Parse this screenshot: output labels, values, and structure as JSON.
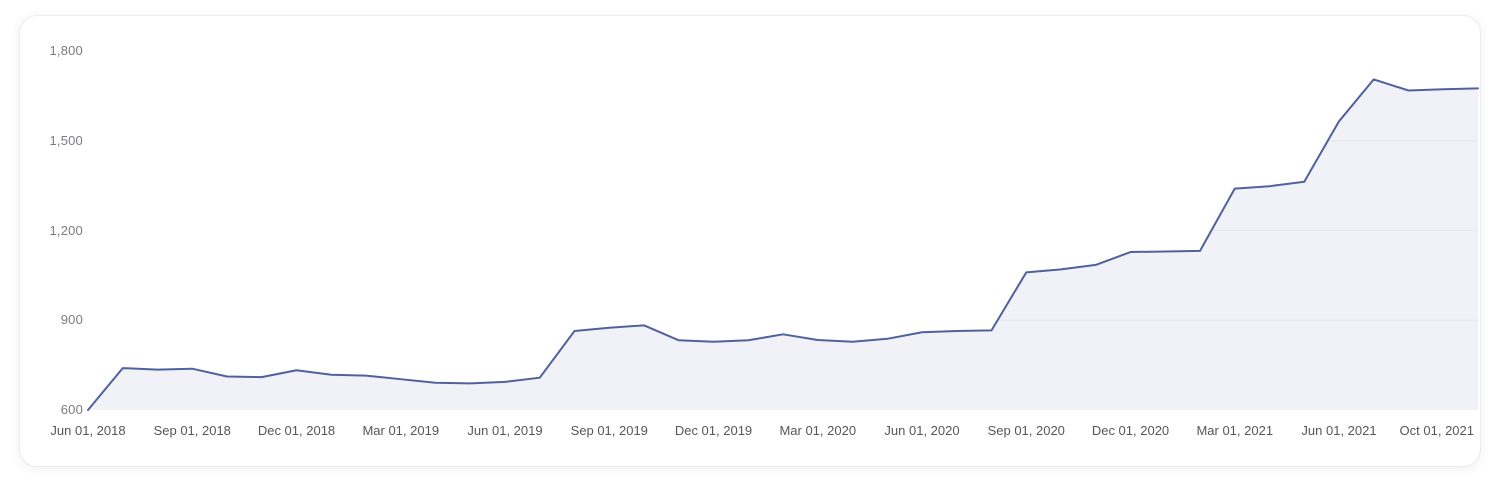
{
  "chart_data": {
    "type": "area",
    "title": "",
    "xlabel": "",
    "ylabel": "",
    "ylim": [
      600,
      1800
    ],
    "grid": "horizontal, visible only over area fill",
    "legend": "none",
    "months": [
      "Jun 2018",
      "Jul 2018",
      "Aug 2018",
      "Sep 2018",
      "Oct 2018",
      "Nov 2018",
      "Dec 2018",
      "Jan 2019",
      "Feb 2019",
      "Mar 2019",
      "Apr 2019",
      "May 2019",
      "Jun 2019",
      "Jul 2019",
      "Aug 2019",
      "Sep 2019",
      "Oct 2019",
      "Nov 2019",
      "Dec 2019",
      "Jan 2020",
      "Feb 2020",
      "Mar 2020",
      "Apr 2020",
      "May 2020",
      "Jun 2020",
      "Jul 2020",
      "Aug 2020",
      "Sep 2020",
      "Oct 2020",
      "Nov 2020",
      "Dec 2020",
      "Jan 2021",
      "Feb 2021",
      "Mar 2021",
      "Apr 2021",
      "May 2021",
      "Jun 2021",
      "Jul 2021",
      "Aug 2021",
      "Sep 2021",
      "Oct 2021"
    ],
    "values": [
      600,
      740,
      735,
      738,
      712,
      710,
      733,
      718,
      715,
      703,
      691,
      689,
      694,
      708,
      864,
      875,
      883,
      833,
      828,
      833,
      853,
      834,
      828,
      838,
      860,
      864,
      866,
      1060,
      1070,
      1085,
      1128,
      1130,
      1132,
      1340,
      1348,
      1363,
      1565,
      1705,
      1668,
      1672,
      1675
    ],
    "y_ticks": [
      {
        "value": 600,
        "label": "600"
      },
      {
        "value": 900,
        "label": "900"
      },
      {
        "value": 1200,
        "label": "1,200"
      },
      {
        "value": 1500,
        "label": "1,500"
      },
      {
        "value": 1800,
        "label": "1,800"
      }
    ],
    "x_ticks": [
      {
        "label": "Jun 01, 2018",
        "month_index": 0,
        "align": "center"
      },
      {
        "label": "Sep 01, 2018",
        "month_index": 3,
        "align": "center"
      },
      {
        "label": "Dec 01, 2018",
        "month_index": 6,
        "align": "center"
      },
      {
        "label": "Mar 01, 2019",
        "month_index": 9,
        "align": "center"
      },
      {
        "label": "Jun 01, 2019",
        "month_index": 12,
        "align": "center"
      },
      {
        "label": "Sep 01, 2019",
        "month_index": 15,
        "align": "center"
      },
      {
        "label": "Dec 01, 2019",
        "month_index": 18,
        "align": "center"
      },
      {
        "label": "Mar 01, 2020",
        "month_index": 21,
        "align": "center"
      },
      {
        "label": "Jun 01, 2020",
        "month_index": 24,
        "align": "center"
      },
      {
        "label": "Sep 01, 2020",
        "month_index": 27,
        "align": "center"
      },
      {
        "label": "Dec 01, 2020",
        "month_index": 30,
        "align": "center"
      },
      {
        "label": "Mar 01, 2021",
        "month_index": 33,
        "align": "center"
      },
      {
        "label": "Jun 01, 2021",
        "month_index": 36,
        "align": "center"
      },
      {
        "label": "Oct 01, 2021",
        "month_index": 40,
        "align": "end"
      }
    ]
  },
  "colors": {
    "line": "#50619c",
    "area_fill": "#f0f2f8",
    "grid_on_fill": "#e6e8ee",
    "y_tick_text": "#797c80",
    "x_tick_text": "#54575b",
    "card_background": "#ffffff",
    "card_border": "#ececee"
  }
}
